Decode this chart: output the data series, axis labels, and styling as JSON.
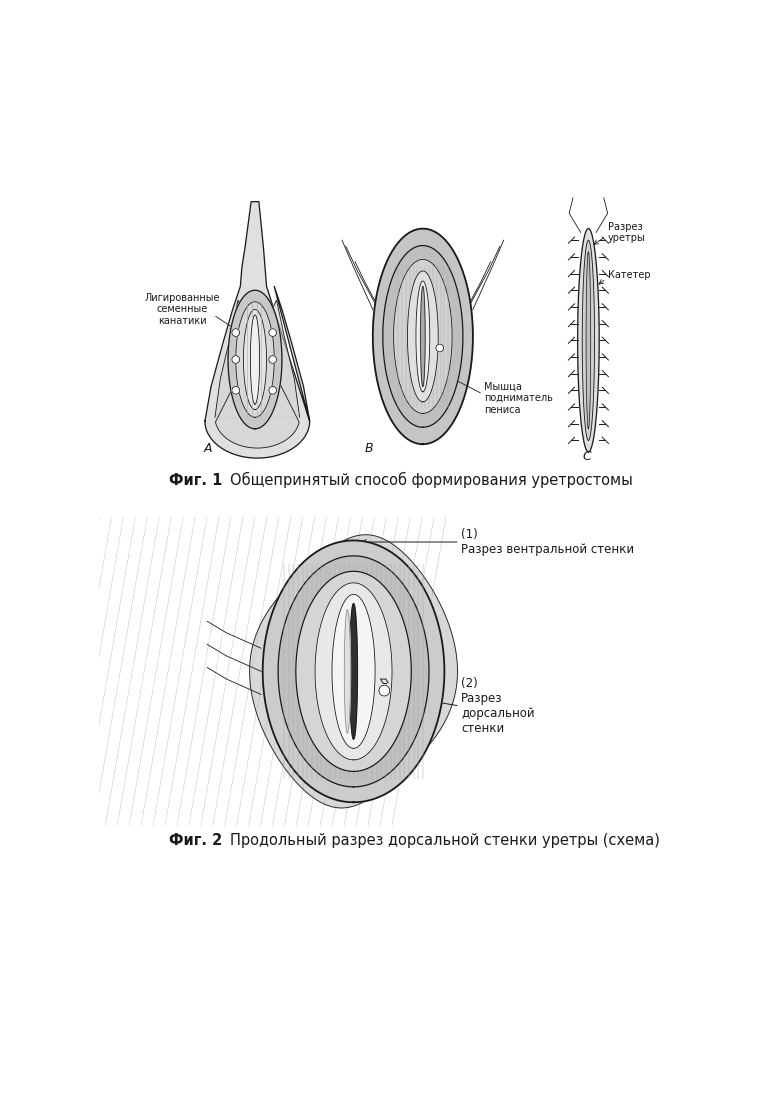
{
  "fig1_caption_bold": "Фиг. 1",
  "fig1_caption_text": "  Общепринятый способ формирования уретростомы",
  "fig2_caption_bold": "Фиг. 2",
  "fig2_caption_text": "  Продольный разрез дорсальной стенки уретры (схема)",
  "label_A_lig": "Лигированные\nсеменные\nканатики",
  "label_B_muscle": "Мышца\nподниматель\nпениса",
  "label_C_razrez": "Разрез\nуретры",
  "label_C_kateter": "Катетер",
  "label_fig2_1": "(1)\nРазрез вентральной стенки",
  "label_fig2_2": "(2)\nРазрез\nдорсальной\nстенки",
  "bg_color": "#ffffff",
  "line_color": "#1a1a1a"
}
